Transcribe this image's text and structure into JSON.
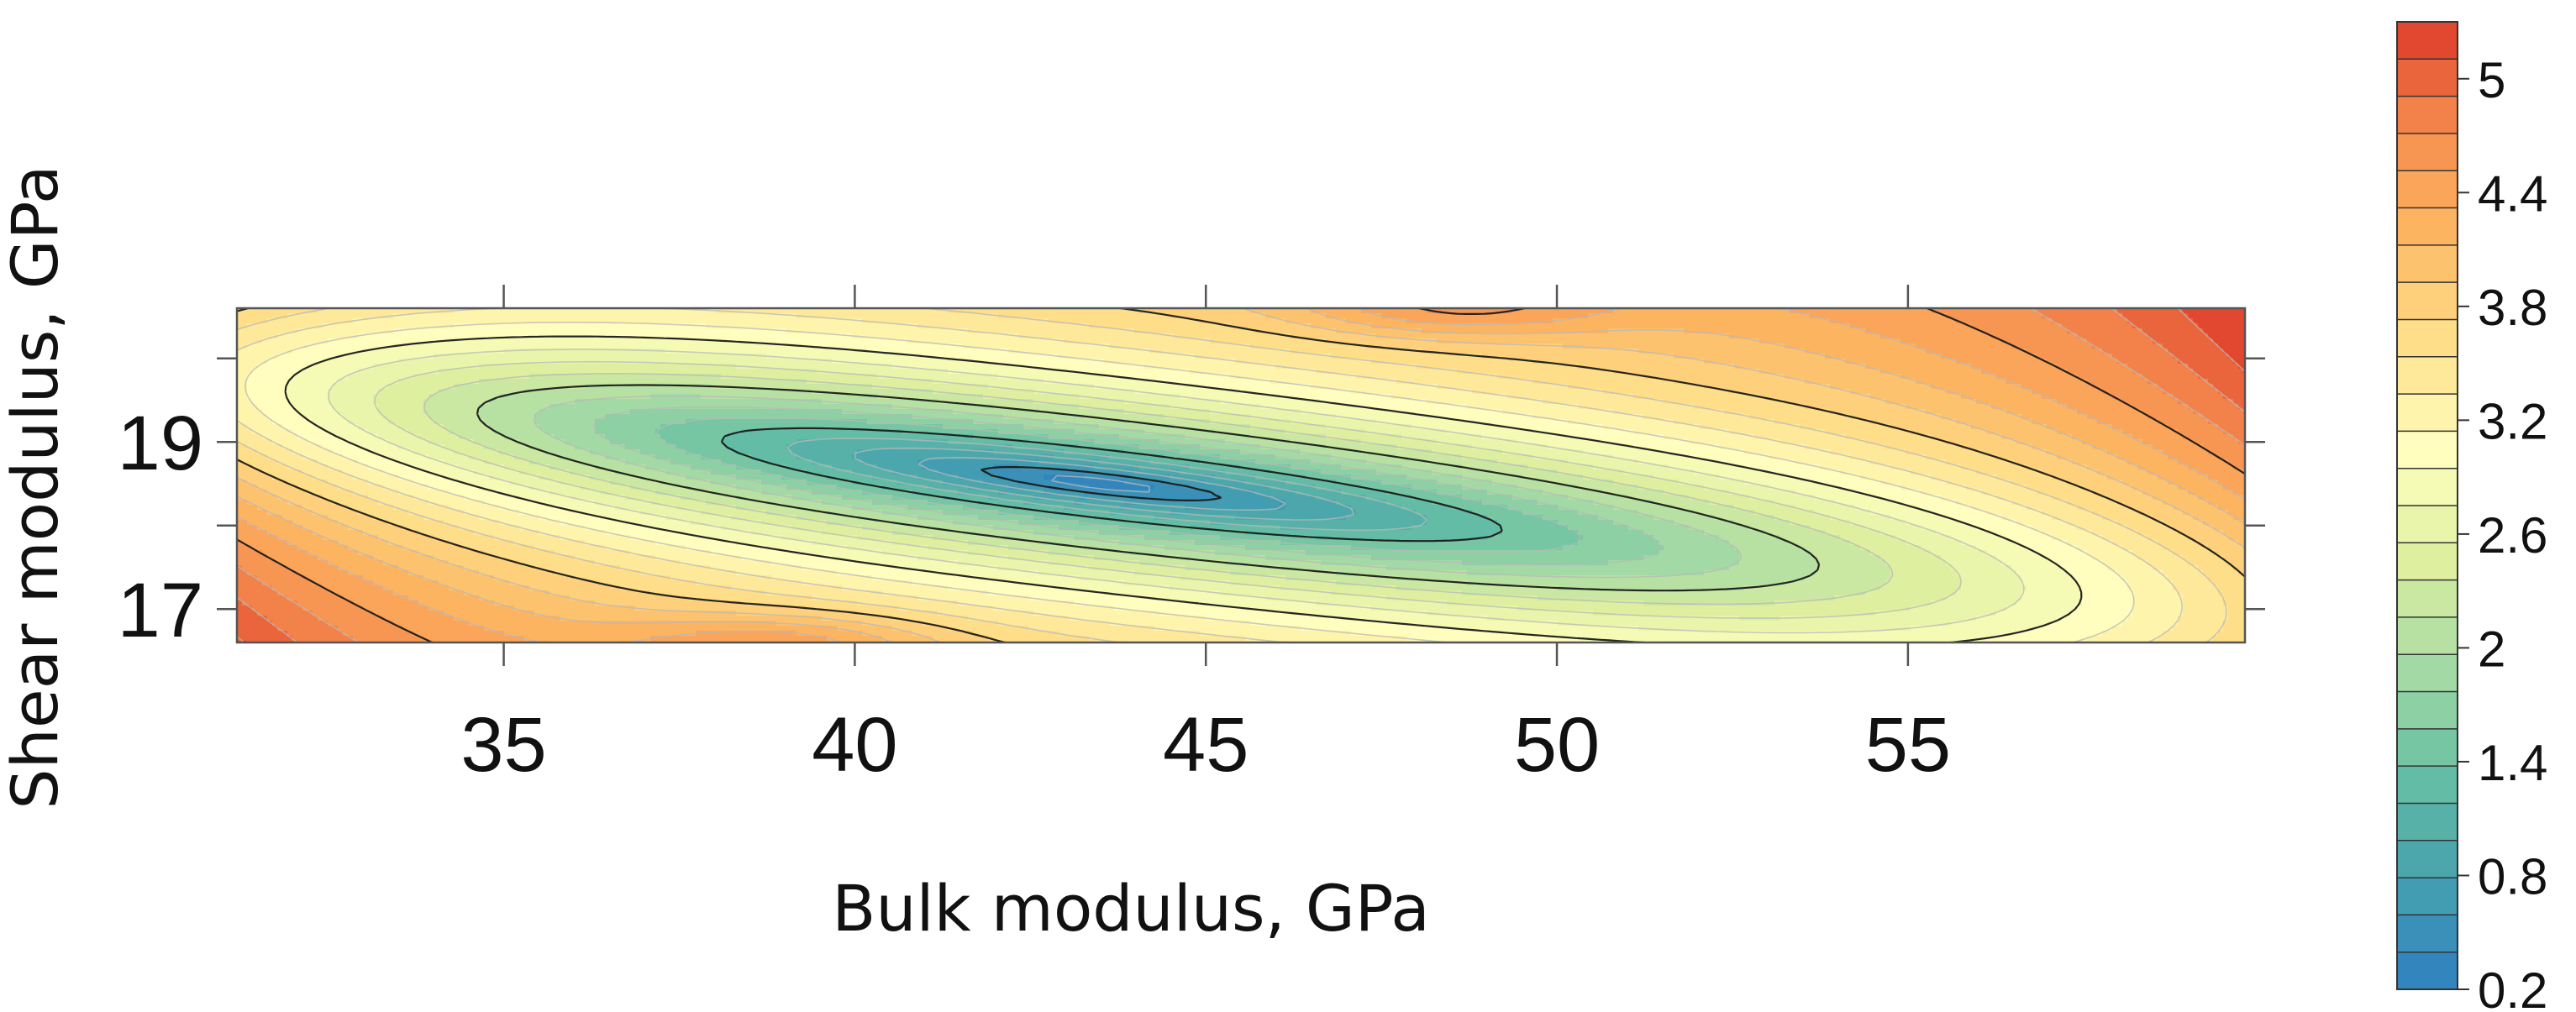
{
  "chart_data": {
    "type": "heatmap",
    "title": "",
    "xlabel": "Bulk modulus, GPa",
    "ylabel": "Shear modulus, GPa",
    "xlim": [
      31.2,
      59.8
    ],
    "ylim": [
      16.6,
      20.6
    ],
    "x_ticks": [
      35,
      40,
      45,
      50,
      55
    ],
    "y_ticks": [
      17,
      19
    ],
    "x_tick_labels": [
      "35",
      "40",
      "45",
      "50",
      "55"
    ],
    "y_tick_labels": [
      "17",
      "19"
    ],
    "minimum": {
      "x": 43.5,
      "y": 18.5,
      "value": 0.2
    },
    "colorbar": {
      "min": 0.2,
      "max": 5.3,
      "levels": 26,
      "tick_values": [
        5,
        4.4,
        3.8,
        3.2,
        2.6,
        2,
        1.4,
        0.8,
        0.2
      ],
      "tick_labels": [
        "5",
        "4.4",
        "3.8",
        "3.2",
        "2.6",
        "2",
        "1.4",
        "0.8",
        "0.2"
      ],
      "colors": [
        "#2f7fc1",
        "#45a0b0",
        "#66bfa4",
        "#a6dba4",
        "#dff0a0",
        "#ffffbf",
        "#fee08b",
        "#fdb863",
        "#f68d4f",
        "#dd3a28"
      ]
    },
    "grid": false,
    "legend": "colorbar-right"
  }
}
